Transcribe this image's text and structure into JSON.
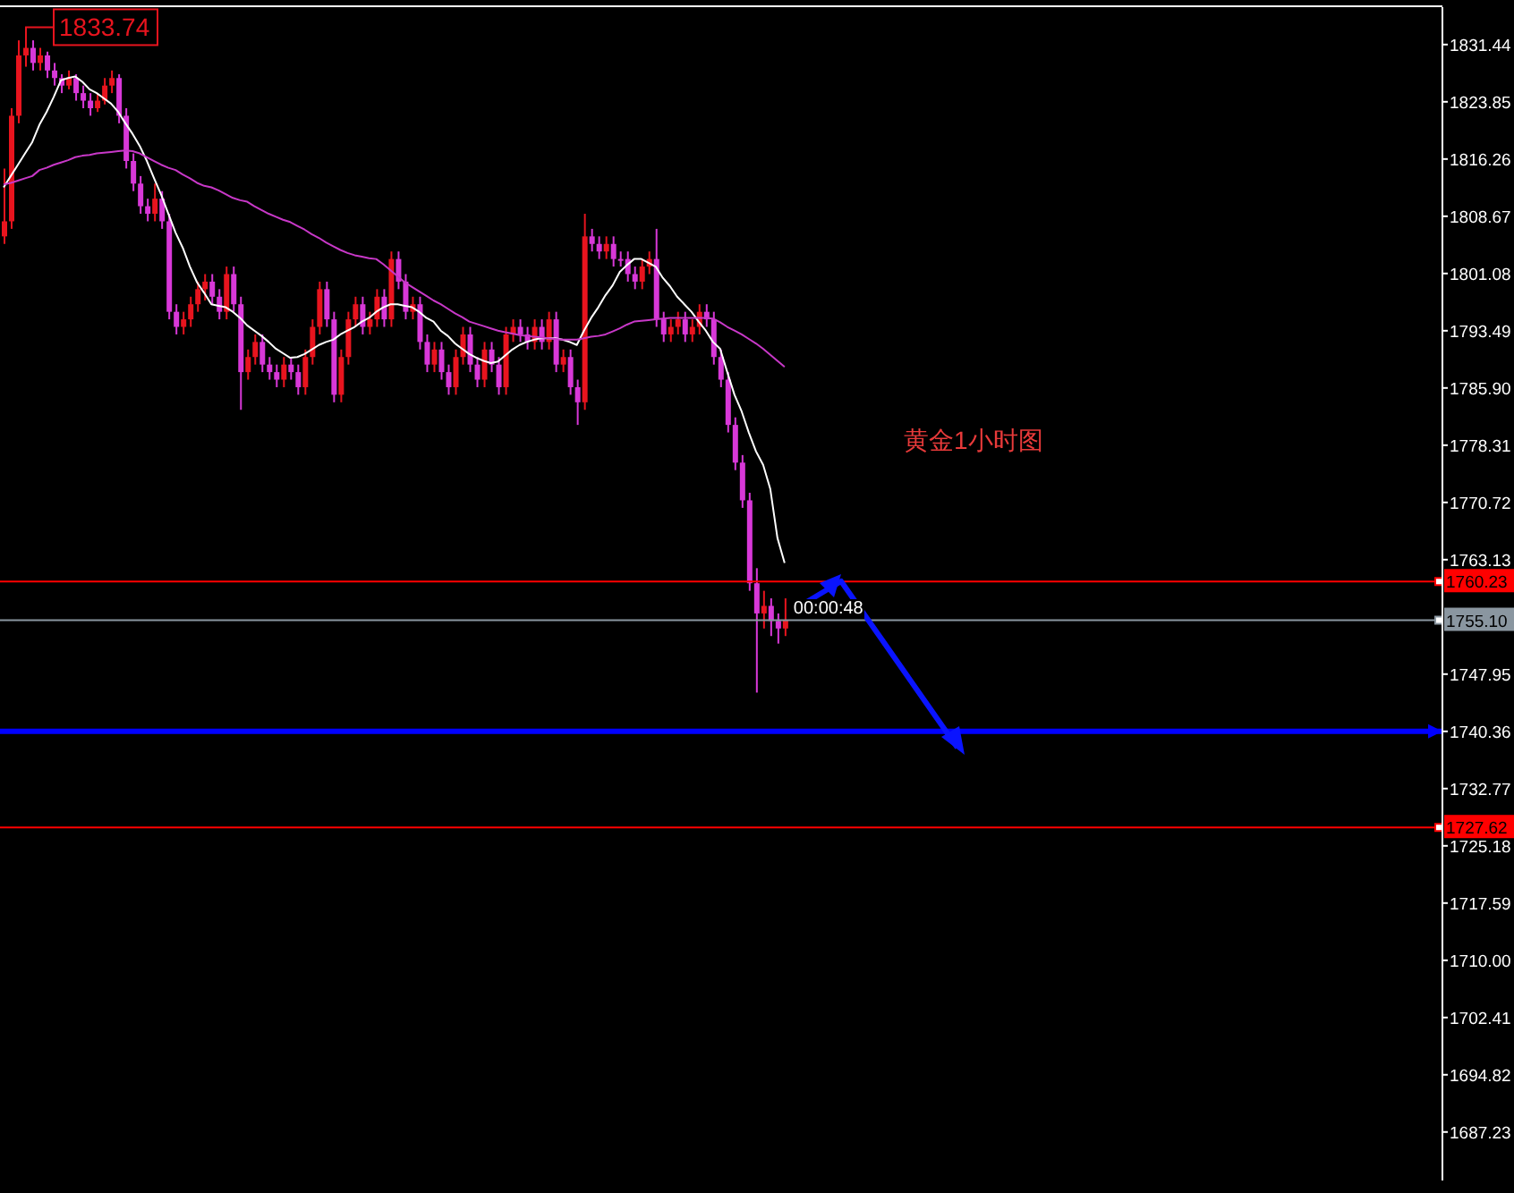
{
  "chart_data": {
    "type": "candlestick",
    "categories": [
      null,
      null,
      null,
      null,
      null,
      null,
      null,
      null,
      null,
      null,
      null,
      null,
      null,
      null,
      null,
      null,
      null,
      null,
      null,
      null,
      null,
      null,
      null,
      null,
      null,
      null,
      null,
      null,
      null,
      null,
      null,
      null,
      null,
      null,
      null,
      null,
      null,
      null,
      null,
      null,
      null,
      null,
      null,
      null,
      null,
      null,
      null,
      null,
      null,
      null,
      null,
      null,
      null,
      null,
      null,
      null,
      null,
      null,
      null,
      null,
      null,
      null,
      null,
      null,
      null,
      null,
      null,
      null,
      null,
      null,
      null,
      null,
      null,
      null,
      null,
      null,
      null,
      null,
      null,
      null,
      null,
      null,
      null,
      null,
      null,
      null,
      null,
      null,
      null,
      null,
      null,
      null,
      null,
      null,
      null,
      null,
      null,
      null,
      null,
      null,
      null,
      null,
      null,
      null,
      null,
      null,
      null,
      null,
      null,
      null
    ],
    "ohlc": [
      [
        1806,
        1815,
        1805,
        1808
      ],
      [
        1808,
        1823,
        1807,
        1822
      ],
      [
        1822,
        1832,
        1821,
        1830
      ],
      [
        1830,
        1833.74,
        1828.5,
        1831
      ],
      [
        1831,
        1832,
        1828,
        1829
      ],
      [
        1829,
        1831,
        1828,
        1830
      ],
      [
        1830,
        1830.5,
        1827,
        1828
      ],
      [
        1828,
        1829,
        1826,
        1827
      ],
      [
        1827,
        1827.5,
        1825,
        1826
      ],
      [
        1826,
        1828,
        1825.5,
        1827
      ],
      [
        1827,
        1827.5,
        1824,
        1825
      ],
      [
        1825,
        1826,
        1823,
        1824
      ],
      [
        1824,
        1825,
        1822,
        1823
      ],
      [
        1823,
        1825,
        1822.5,
        1824
      ],
      [
        1824,
        1827,
        1823.5,
        1826
      ],
      [
        1826,
        1828,
        1825,
        1827
      ],
      [
        1827,
        1827.5,
        1821,
        1822
      ],
      [
        1822,
        1823,
        1815,
        1816
      ],
      [
        1816,
        1817,
        1812,
        1813
      ],
      [
        1813,
        1814,
        1809,
        1810
      ],
      [
        1810,
        1811,
        1808,
        1809
      ],
      [
        1809,
        1813,
        1808,
        1811
      ],
      [
        1811,
        1812,
        1807,
        1808
      ],
      [
        1808,
        1809,
        1795,
        1796
      ],
      [
        1796,
        1797,
        1793,
        1794
      ],
      [
        1794,
        1796,
        1793,
        1795
      ],
      [
        1795,
        1798,
        1794,
        1797
      ],
      [
        1797,
        1800,
        1796,
        1799
      ],
      [
        1799,
        1801,
        1797.5,
        1800
      ],
      [
        1800,
        1801,
        1797,
        1798
      ],
      [
        1798,
        1799,
        1795,
        1796
      ],
      [
        1796,
        1802,
        1795,
        1801
      ],
      [
        1801,
        1802,
        1796,
        1797
      ],
      [
        1797,
        1798,
        1783,
        1788
      ],
      [
        1788,
        1791,
        1787,
        1790
      ],
      [
        1790,
        1793,
        1789,
        1792
      ],
      [
        1792,
        1793,
        1788,
        1789
      ],
      [
        1789,
        1790,
        1787,
        1788
      ],
      [
        1788,
        1789,
        1786,
        1787
      ],
      [
        1787,
        1790,
        1786,
        1789
      ],
      [
        1789,
        1790,
        1787,
        1788
      ],
      [
        1788,
        1789,
        1785,
        1786
      ],
      [
        1786,
        1791,
        1785,
        1790
      ],
      [
        1790,
        1795,
        1789,
        1794
      ],
      [
        1794,
        1800,
        1793,
        1799
      ],
      [
        1799,
        1800,
        1794,
        1795
      ],
      [
        1795,
        1796,
        1784,
        1785
      ],
      [
        1785,
        1791,
        1784,
        1790
      ],
      [
        1790,
        1796,
        1789,
        1795
      ],
      [
        1795,
        1798,
        1794,
        1797
      ],
      [
        1797,
        1798,
        1793,
        1794
      ],
      [
        1794,
        1796,
        1793,
        1795
      ],
      [
        1795,
        1799,
        1794,
        1798
      ],
      [
        1798,
        1799,
        1794,
        1795
      ],
      [
        1795,
        1804,
        1794,
        1803
      ],
      [
        1803,
        1804,
        1799,
        1800
      ],
      [
        1800,
        1801,
        1795,
        1796
      ],
      [
        1796,
        1798,
        1795,
        1797
      ],
      [
        1797,
        1798,
        1791,
        1792
      ],
      [
        1792,
        1793,
        1788,
        1789
      ],
      [
        1789,
        1792,
        1788,
        1791
      ],
      [
        1791,
        1792,
        1787,
        1788
      ],
      [
        1788,
        1789,
        1785,
        1786
      ],
      [
        1786,
        1791,
        1785,
        1790
      ],
      [
        1790,
        1794,
        1789,
        1793
      ],
      [
        1793,
        1794,
        1788,
        1789
      ],
      [
        1789,
        1790,
        1786,
        1787
      ],
      [
        1787,
        1792,
        1786,
        1791
      ],
      [
        1791,
        1792,
        1788,
        1789
      ],
      [
        1789,
        1790,
        1785,
        1786
      ],
      [
        1786,
        1794,
        1785,
        1793
      ],
      [
        1793,
        1795,
        1792,
        1794
      ],
      [
        1794,
        1795,
        1792,
        1793
      ],
      [
        1793,
        1794,
        1791,
        1792
      ],
      [
        1792,
        1795,
        1791,
        1794
      ],
      [
        1794,
        1795,
        1791,
        1792
      ],
      [
        1792,
        1796,
        1791,
        1795
      ],
      [
        1795,
        1796,
        1788,
        1789
      ],
      [
        1789,
        1791,
        1788,
        1790
      ],
      [
        1790,
        1791,
        1785,
        1786
      ],
      [
        1786,
        1787,
        1781,
        1784
      ],
      [
        1784,
        1809,
        1783,
        1806
      ],
      [
        1806,
        1807,
        1804,
        1805
      ],
      [
        1805,
        1806,
        1803,
        1804
      ],
      [
        1804,
        1806,
        1803,
        1805
      ],
      [
        1805,
        1806,
        1802,
        1803
      ],
      [
        1803,
        1804,
        1802,
        1803
      ],
      [
        1803,
        1804,
        1800,
        1801
      ],
      [
        1801,
        1802,
        1799,
        1800
      ],
      [
        1800,
        1803,
        1799,
        1802
      ],
      [
        1802,
        1804,
        1801,
        1803
      ],
      [
        1803,
        1807,
        1794,
        1795
      ],
      [
        1795,
        1796,
        1792,
        1793
      ],
      [
        1793,
        1795,
        1792,
        1794
      ],
      [
        1794,
        1796,
        1793,
        1795
      ],
      [
        1795,
        1796,
        1792,
        1793
      ],
      [
        1793,
        1795,
        1792,
        1794
      ],
      [
        1794,
        1797,
        1793,
        1796
      ],
      [
        1796,
        1797,
        1794,
        1795
      ],
      [
        1795,
        1796,
        1789,
        1790
      ],
      [
        1790,
        1791,
        1786,
        1787
      ],
      [
        1787,
        1788,
        1780,
        1781
      ],
      [
        1781,
        1782,
        1775,
        1776
      ],
      [
        1776,
        1777,
        1770,
        1771
      ],
      [
        1771,
        1772,
        1759,
        1760
      ],
      [
        1760,
        1762,
        1745.5,
        1756
      ],
      [
        1756,
        1759,
        1754,
        1757
      ],
      [
        1757,
        1758,
        1753,
        1755
      ],
      [
        1755,
        1756,
        1752,
        1754
      ],
      [
        1754,
        1758,
        1753,
        1755.1
      ]
    ],
    "colors": [
      "#e8141e",
      "#e8141e",
      "#e8141e",
      "#e8141e",
      "#d838d8",
      "#e8141e",
      "#d838d8",
      "#d838d8",
      "#d838d8",
      "#e8141e",
      "#d838d8",
      "#d838d8",
      "#d838d8",
      "#e8141e",
      "#e8141e",
      "#e8141e",
      "#d838d8",
      "#d838d8",
      "#d838d8",
      "#d838d8",
      "#d838d8",
      "#e8141e",
      "#d838d8",
      "#d838d8",
      "#d838d8",
      "#e8141e",
      "#e8141e",
      "#e8141e",
      "#e8141e",
      "#d838d8",
      "#d838d8",
      "#e8141e",
      "#d838d8",
      "#d838d8",
      "#e8141e",
      "#e8141e",
      "#d838d8",
      "#d838d8",
      "#d838d8",
      "#e8141e",
      "#d838d8",
      "#d838d8",
      "#e8141e",
      "#e8141e",
      "#e8141e",
      "#d838d8",
      "#d838d8",
      "#e8141e",
      "#e8141e",
      "#e8141e",
      "#d838d8",
      "#e8141e",
      "#e8141e",
      "#d838d8",
      "#e8141e",
      "#d838d8",
      "#d838d8",
      "#e8141e",
      "#d838d8",
      "#d838d8",
      "#e8141e",
      "#d838d8",
      "#d838d8",
      "#e8141e",
      "#e8141e",
      "#d838d8",
      "#d838d8",
      "#e8141e",
      "#d838d8",
      "#d838d8",
      "#e8141e",
      "#e8141e",
      "#d838d8",
      "#d838d8",
      "#e8141e",
      "#d838d8",
      "#e8141e",
      "#d838d8",
      "#e8141e",
      "#d838d8",
      "#d838d8",
      "#e8141e",
      "#d838d8",
      "#d838d8",
      "#e8141e",
      "#d838d8",
      "#d838d8",
      "#d838d8",
      "#d838d8",
      "#e8141e",
      "#e8141e",
      "#d838d8",
      "#d838d8",
      "#e8141e",
      "#e8141e",
      "#d838d8",
      "#e8141e",
      "#e8141e",
      "#d838d8",
      "#d838d8",
      "#d838d8",
      "#d838d8",
      "#d838d8",
      "#d838d8",
      "#d838d8",
      "#d838d8",
      "#e8141e",
      "#d838d8",
      "#d838d8",
      "#e8141e"
    ],
    "series": [
      {
        "type": "line",
        "color": "#ffffff",
        "values": [
          1812.5,
          1814,
          1815.5,
          1817,
          1818.5,
          1820.8,
          1822.5,
          1824.5,
          1826.7,
          1827,
          1827.2,
          1826.5,
          1825.5,
          1825,
          1824.3,
          1823.6,
          1822.5,
          1821,
          1819.6,
          1818,
          1816,
          1813.7,
          1811.5,
          1809,
          1806.5,
          1804.5,
          1802,
          1799.9,
          1798.5,
          1797,
          1796.8,
          1796.6,
          1796,
          1795.2,
          1794.2,
          1793.5,
          1792.8,
          1792,
          1791.1,
          1790.5,
          1789.9,
          1790,
          1790.4,
          1791,
          1791.6,
          1792,
          1792.3,
          1793,
          1793.5,
          1794,
          1794.7,
          1795.2,
          1796,
          1796.6,
          1797,
          1797,
          1796.8,
          1796.6,
          1796,
          1795.2,
          1794.7,
          1793.5,
          1792.8,
          1791.8,
          1791.1,
          1790.4,
          1789.9,
          1789.5,
          1789.2,
          1789.4,
          1790.2,
          1791,
          1791.6,
          1792,
          1792.3,
          1792.5,
          1792.5,
          1792.5,
          1792.3,
          1792,
          1791.6,
          1793.5,
          1795.2,
          1796.6,
          1798.2,
          1799.5,
          1801.3,
          1802.2,
          1803,
          1803,
          1802.5,
          1802,
          1800.5,
          1799.4,
          1798,
          1797,
          1796,
          1794.7,
          1793.5,
          1792,
          1791.1,
          1788,
          1785,
          1782.8,
          1780,
          1777.5,
          1775.7,
          1772.5,
          1766,
          1762.7
        ]
      },
      {
        "type": "line",
        "color": "#c838c8",
        "values": [
          1812.9,
          1813.1,
          1813.4,
          1813.7,
          1814,
          1814.8,
          1815.1,
          1815.5,
          1815.8,
          1816.1,
          1816.5,
          1816.7,
          1816.8,
          1817,
          1817.1,
          1817.2,
          1817.3,
          1817.4,
          1817.3,
          1817,
          1816.5,
          1816,
          1815.5,
          1815.1,
          1814.8,
          1814.2,
          1813.7,
          1813.1,
          1812.7,
          1812.5,
          1812.1,
          1811.6,
          1811.1,
          1810.8,
          1810.6,
          1810,
          1809.5,
          1809,
          1808.6,
          1808.2,
          1807.9,
          1807.4,
          1806.9,
          1806.3,
          1805.8,
          1805.2,
          1804.7,
          1804.2,
          1803.8,
          1803.5,
          1803.3,
          1803.1,
          1803,
          1802.3,
          1801.5,
          1800.7,
          1799.9,
          1799.3,
          1798.7,
          1798.1,
          1797.5,
          1797,
          1796.4,
          1795.8,
          1795.3,
          1794.7,
          1794.4,
          1794.1,
          1793.8,
          1793.5,
          1793.3,
          1793.1,
          1792.9,
          1792.8,
          1792.7,
          1792.6,
          1792.5,
          1792.4,
          1792.3,
          1792.3,
          1792.3,
          1792.5,
          1792.7,
          1792.8,
          1793,
          1793.4,
          1793.8,
          1794.3,
          1794.7,
          1794.8,
          1794.9,
          1795,
          1795.1,
          1795.2,
          1795.2,
          1795.2,
          1795.2,
          1795.2,
          1795.2,
          1795.1,
          1794.6,
          1794,
          1793.5,
          1793,
          1792.4,
          1791.8,
          1791.1,
          1790.3,
          1789.5,
          1788.7
        ]
      }
    ],
    "ylim": [
      1680.8,
      1836.4
    ],
    "yticks": [
      1831.44,
      1823.85,
      1816.26,
      1808.67,
      1801.08,
      1793.49,
      {
        "value": 1785.9,
        "label": "1785.90"
      },
      1778.31,
      1770.72,
      1763.13,
      1747.95,
      1740.36,
      1732.77,
      1725.18,
      1717.59,
      {
        "value": 1710,
        "label": "1710.00"
      },
      1702.41,
      1694.82,
      1687.23
    ],
    "tick_labels": "y",
    "marker": "none",
    "ref_lines": [
      {
        "axis": "y",
        "value": 1760.23,
        "label": "1760.23",
        "color": "#ff0000"
      },
      {
        "axis": "y",
        "value": 1755.1,
        "label": "1755.10",
        "color": "#8a96a0"
      },
      {
        "axis": "y",
        "value": 1740.36,
        "color": "#0000ff"
      },
      {
        "axis": "y",
        "value": 1727.62,
        "label": "1727.62",
        "color": "#ff0000"
      }
    ],
    "annotations": [
      "1833.74",
      "黄金1小时图",
      "00:00:48"
    ]
  }
}
